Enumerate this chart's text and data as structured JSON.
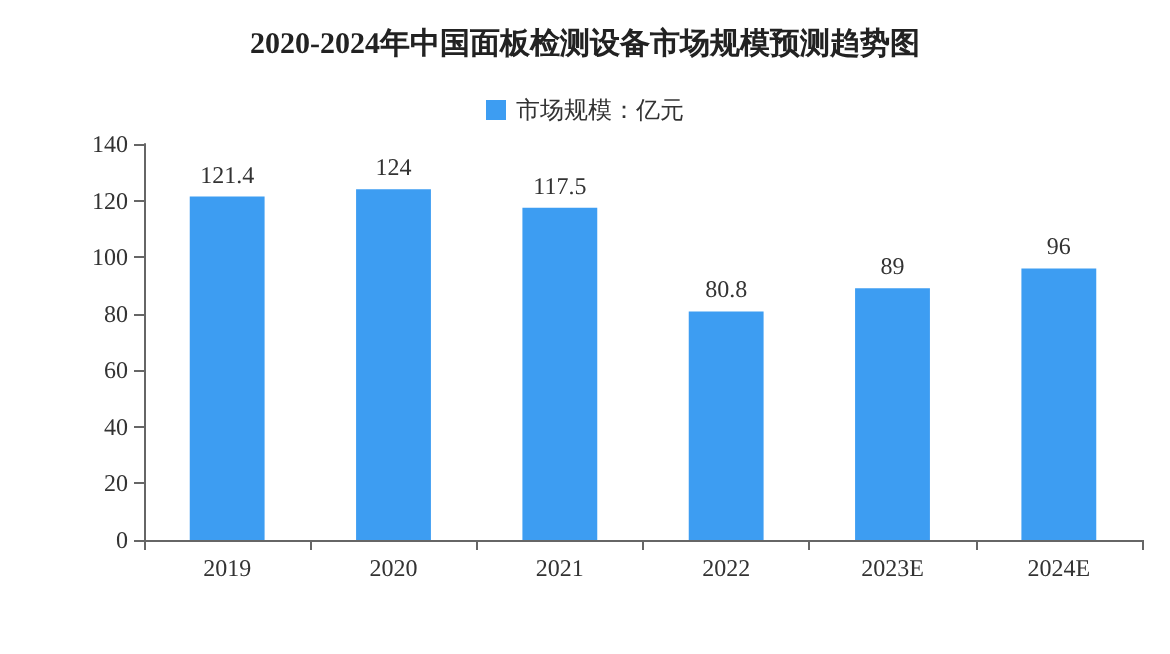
{
  "chart_data": {
    "type": "bar",
    "title": "2020-2024年中国面板检测设备市场规模预测趋势图",
    "categories": [
      "2019",
      "2020",
      "2021",
      "2022",
      "2023E",
      "2024E"
    ],
    "series": [
      {
        "name": "市场规模：亿元",
        "color": "#3d9df2",
        "values": [
          121.4,
          124,
          117.5,
          80.8,
          89,
          96
        ]
      }
    ],
    "ylim": [
      0,
      140
    ],
    "yticks": [
      0,
      20,
      40,
      60,
      80,
      100,
      120,
      140
    ],
    "grid": false,
    "legend": "top",
    "data_labels": true
  }
}
